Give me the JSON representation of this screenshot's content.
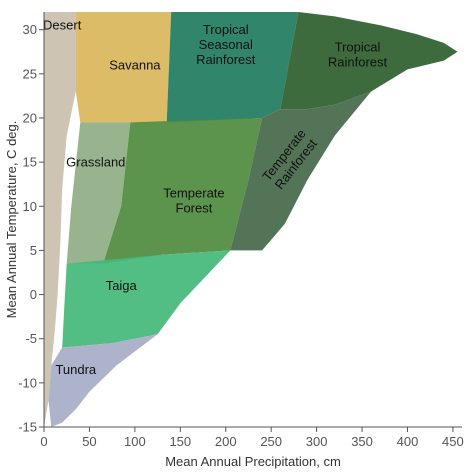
{
  "chart_data": {
    "type": "area",
    "title": "",
    "xlabel": "Mean Annual Precipitation, cm",
    "ylabel": "Mean Annual Temperature, C deg.",
    "xlim": [
      0,
      460
    ],
    "ylim": [
      -15,
      32
    ],
    "xticks": [
      0,
      50,
      100,
      150,
      200,
      250,
      300,
      350,
      400,
      450
    ],
    "yticks": [
      -15,
      -10,
      -5,
      0,
      5,
      10,
      15,
      20,
      25,
      30
    ],
    "grid": false,
    "biomes": [
      {
        "name": "Desert",
        "label_lines": [
          "Desert"
        ],
        "label_at": [
          20,
          30
        ],
        "label_rotate": 0,
        "color": "#c9bfad",
        "polygon": [
          [
            0,
            32
          ],
          [
            35,
            32
          ],
          [
            35,
            23
          ],
          [
            25,
            18
          ],
          [
            20,
            12
          ],
          [
            18,
            6
          ],
          [
            15,
            0
          ],
          [
            12,
            -4
          ],
          [
            8,
            -8
          ],
          [
            5,
            -12
          ],
          [
            0,
            -15
          ]
        ]
      },
      {
        "name": "Savanna",
        "label_lines": [
          "Savanna"
        ],
        "label_at": [
          100,
          25.5
        ],
        "label_rotate": 0,
        "color": "#d9b65a",
        "polygon": [
          [
            35,
            32
          ],
          [
            140,
            32
          ],
          [
            135,
            19.5
          ],
          [
            40,
            19.5
          ],
          [
            35,
            23
          ]
        ]
      },
      {
        "name": "Tropical Seasonal Rainforest",
        "label_lines": [
          "Tropical",
          "Seasonal",
          "Rainforest"
        ],
        "label_at": [
          200,
          29.5
        ],
        "label_rotate": 0,
        "color": "#1f7b5e",
        "polygon": [
          [
            140,
            32
          ],
          [
            280,
            32
          ],
          [
            260,
            21
          ],
          [
            240,
            20
          ],
          [
            135,
            19.5
          ]
        ]
      },
      {
        "name": "Tropical Rainforest",
        "label_lines": [
          "Tropical",
          "Rainforest"
        ],
        "label_at": [
          345,
          27.5
        ],
        "label_rotate": 0,
        "color": "#2e5e2c",
        "polygon": [
          [
            280,
            32
          ],
          [
            320,
            31.5
          ],
          [
            370,
            30.5
          ],
          [
            410,
            29.5
          ],
          [
            440,
            28.5
          ],
          [
            455,
            27.5
          ],
          [
            440,
            26.5
          ],
          [
            400,
            25.5
          ],
          [
            360,
            23
          ],
          [
            320,
            21.5
          ],
          [
            290,
            21
          ],
          [
            260,
            21
          ]
        ]
      },
      {
        "name": "Grassland",
        "label_lines": [
          "Grassland"
        ],
        "label_at": [
          57,
          14.5
        ],
        "label_rotate": 0,
        "color": "#8fae84",
        "polygon": [
          [
            40,
            19.5
          ],
          [
            95,
            19.5
          ],
          [
            85,
            10
          ],
          [
            65,
            3.5
          ],
          [
            25,
            3.5
          ],
          [
            30,
            10
          ]
        ]
      },
      {
        "name": "Temperate Forest",
        "label_lines": [
          "Temperate",
          "Forest"
        ],
        "label_at": [
          165,
          11
        ],
        "label_rotate": 0,
        "color": "#4e8b3e",
        "polygon": [
          [
            95,
            19.5
          ],
          [
            240,
            20
          ],
          [
            225,
            13
          ],
          [
            205,
            5
          ],
          [
            130,
            4.5
          ],
          [
            65,
            3.5
          ],
          [
            85,
            10
          ]
        ]
      },
      {
        "name": "Temperate Rainforest",
        "label_lines": [
          "Temperate",
          "Rainforest"
        ],
        "label_at": [
          268,
          15.5
        ],
        "label_rotate": -52,
        "color": "#45684a",
        "polygon": [
          [
            240,
            20
          ],
          [
            260,
            21
          ],
          [
            290,
            21
          ],
          [
            320,
            21.5
          ],
          [
            360,
            23
          ],
          [
            320,
            18
          ],
          [
            290,
            13
          ],
          [
            265,
            8
          ],
          [
            240,
            5
          ],
          [
            205,
            5
          ],
          [
            225,
            13
          ]
        ]
      },
      {
        "name": "Taiga",
        "label_lines": [
          "Taiga"
        ],
        "label_at": [
          85,
          0.5
        ],
        "label_rotate": 0,
        "color": "#44b97a",
        "polygon": [
          [
            25,
            3.5
          ],
          [
            130,
            4.5
          ],
          [
            205,
            5
          ],
          [
            150,
            -1
          ],
          [
            125,
            -4.5
          ],
          [
            75,
            -5.5
          ],
          [
            20,
            -6
          ],
          [
            22,
            -2
          ]
        ]
      },
      {
        "name": "Tundra",
        "label_lines": [
          "Tundra"
        ],
        "label_at": [
          35,
          -9
        ],
        "label_rotate": 0,
        "color": "#a6adc6",
        "polygon": [
          [
            20,
            -6
          ],
          [
            75,
            -5.5
          ],
          [
            125,
            -4.5
          ],
          [
            80,
            -8
          ],
          [
            50,
            -11
          ],
          [
            35,
            -13
          ],
          [
            20,
            -14.5
          ],
          [
            8,
            -15
          ],
          [
            5,
            -12
          ],
          [
            8,
            -8
          ]
        ]
      }
    ]
  }
}
